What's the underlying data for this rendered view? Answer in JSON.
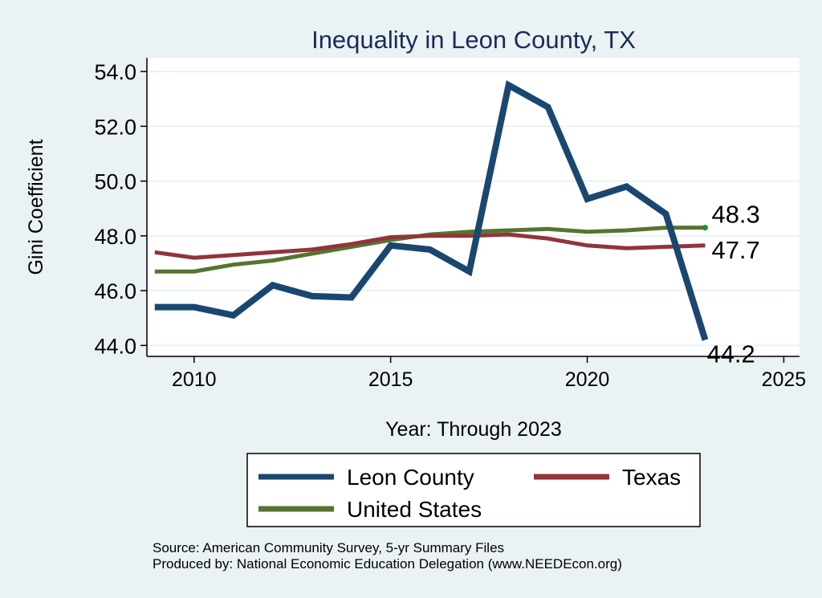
{
  "chart_data": {
    "type": "line",
    "title": "Inequality in Leon County, TX",
    "xlabel": "Year: Through 2023",
    "ylabel": "Gini Coefficient",
    "xlim": [
      2008.8,
      2025.4
    ],
    "ylim": [
      43.6,
      54.5
    ],
    "xticks": [
      2010,
      2015,
      2020,
      2025
    ],
    "yticks": [
      44.0,
      46.0,
      48.0,
      50.0,
      52.0,
      54.0
    ],
    "ytick_labels": [
      "44.0",
      "46.0",
      "48.0",
      "50.0",
      "52.0",
      "54.0"
    ],
    "grid": true,
    "x": [
      2009,
      2010,
      2011,
      2012,
      2013,
      2014,
      2015,
      2016,
      2017,
      2018,
      2019,
      2020,
      2021,
      2022,
      2023
    ],
    "series": [
      {
        "name": "Leon County",
        "color": "#1a476f",
        "values": [
          45.4,
          45.4,
          45.1,
          46.2,
          45.8,
          45.75,
          47.65,
          47.5,
          46.7,
          53.5,
          52.7,
          49.35,
          49.8,
          48.8,
          44.2
        ],
        "end_label": "44.2"
      },
      {
        "name": "Texas",
        "color": "#90353b",
        "values": [
          47.4,
          47.2,
          47.3,
          47.4,
          47.5,
          47.7,
          47.95,
          48.0,
          48.0,
          48.05,
          47.9,
          47.65,
          47.55,
          47.6,
          47.65
        ],
        "end_label": "47.7"
      },
      {
        "name": "United States",
        "color": "#55752f",
        "values": [
          46.7,
          46.7,
          46.95,
          47.1,
          47.35,
          47.6,
          47.85,
          48.05,
          48.15,
          48.2,
          48.25,
          48.15,
          48.2,
          48.3,
          48.3
        ],
        "end_label": "48.3"
      }
    ],
    "legend_position": "bottom",
    "source_note": "Source: American Community Survey, 5-yr Summary Files",
    "producer_note": "Produced by: National Economic Education Delegation (www.NEEDEcon.org)"
  }
}
